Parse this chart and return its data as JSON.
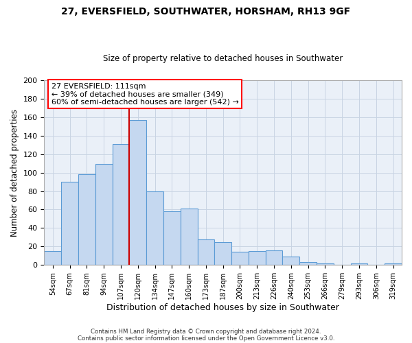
{
  "title": "27, EVERSFIELD, SOUTHWATER, HORSHAM, RH13 9GF",
  "subtitle": "Size of property relative to detached houses in Southwater",
  "xlabel": "Distribution of detached houses by size in Southwater",
  "ylabel": "Number of detached properties",
  "bar_labels": [
    "54sqm",
    "67sqm",
    "81sqm",
    "94sqm",
    "107sqm",
    "120sqm",
    "134sqm",
    "147sqm",
    "160sqm",
    "173sqm",
    "187sqm",
    "200sqm",
    "213sqm",
    "226sqm",
    "240sqm",
    "253sqm",
    "266sqm",
    "279sqm",
    "293sqm",
    "306sqm",
    "319sqm"
  ],
  "bar_values": [
    15,
    90,
    98,
    109,
    131,
    157,
    80,
    58,
    61,
    28,
    25,
    14,
    15,
    16,
    9,
    3,
    2,
    0,
    2,
    0,
    2
  ],
  "bar_color": "#c5d8f0",
  "bar_edgecolor": "#5b9bd5",
  "vline_color": "#cc0000",
  "annotation_box_text": "27 EVERSFIELD: 111sqm\n← 39% of detached houses are smaller (349)\n60% of semi-detached houses are larger (542) →",
  "ylim": [
    0,
    200
  ],
  "yticks": [
    0,
    20,
    40,
    60,
    80,
    100,
    120,
    140,
    160,
    180,
    200
  ],
  "ax_facecolor": "#eaf0f8",
  "background_color": "#ffffff",
  "grid_color": "#c8d4e3",
  "footer_line1": "Contains HM Land Registry data © Crown copyright and database right 2024.",
  "footer_line2": "Contains public sector information licensed under the Open Government Licence v3.0."
}
